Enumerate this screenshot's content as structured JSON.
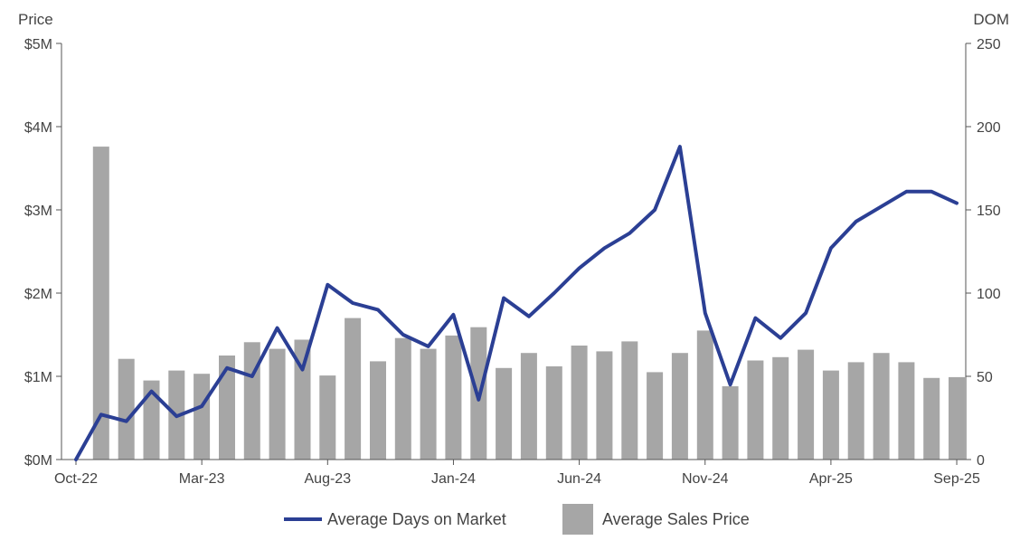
{
  "chart_data": {
    "type": "bar+line",
    "y_left_title": "Price",
    "y_right_title": "DOM",
    "y_left_ticks": [
      "$0M",
      "$1M",
      "$2M",
      "$3M",
      "$4M",
      "$5M"
    ],
    "y_left_ylim": [
      0,
      5000000
    ],
    "y_right_ticks": [
      "0",
      "50",
      "100",
      "150",
      "200",
      "250"
    ],
    "y_right_ylim": [
      0,
      250
    ],
    "x_tick_labels": [
      "Oct-22",
      "Mar-23",
      "Aug-23",
      "Jan-24",
      "Jun-24",
      "Nov-24",
      "Apr-25",
      "Sep-25"
    ],
    "categories": [
      "Oct-22",
      "Nov-22",
      "Dec-22",
      "Jan-23",
      "Feb-23",
      "Mar-23",
      "Apr-23",
      "May-23",
      "Jun-23",
      "Jul-23",
      "Aug-23",
      "Sep-23",
      "Oct-23",
      "Nov-23",
      "Dec-23",
      "Jan-24",
      "Feb-24",
      "Mar-24",
      "Apr-24",
      "May-24",
      "Jun-24",
      "Jul-24",
      "Aug-24",
      "Sep-24",
      "Oct-24",
      "Nov-24",
      "Dec-24",
      "Jan-25",
      "Feb-25",
      "Mar-25",
      "Apr-25",
      "May-25",
      "Jun-25",
      "Jul-25",
      "Aug-25",
      "Sep-25"
    ],
    "series": [
      {
        "name": "Average Sales Price",
        "kind": "bar",
        "axis": "left",
        "color": "#a6a6a6",
        "values": [
          null,
          3760000,
          1210000,
          950000,
          1070000,
          1030000,
          1250000,
          1410000,
          1330000,
          1440000,
          1010000,
          1700000,
          1180000,
          1460000,
          1330000,
          1490000,
          1590000,
          1100000,
          1280000,
          1120000,
          1370000,
          1300000,
          1420000,
          1050000,
          1280000,
          1550000,
          880000,
          1190000,
          1230000,
          1320000,
          1070000,
          1170000,
          1280000,
          1170000,
          980000,
          990000
        ]
      },
      {
        "name": "Average Days on Market",
        "kind": "line",
        "axis": "right",
        "color": "#2b3f94",
        "values": [
          0,
          27,
          23,
          41,
          26,
          32,
          55,
          50,
          79,
          54,
          105,
          94,
          90,
          75,
          68,
          87,
          36,
          97,
          86,
          100,
          115,
          127,
          136,
          150,
          188,
          88,
          45,
          85,
          73,
          88,
          127,
          143,
          152,
          161,
          161,
          154
        ]
      }
    ],
    "grid": false,
    "legend_position": "bottom-center"
  },
  "legend": {
    "line_label": "Average Days on Market",
    "bar_label": "Average Sales Price",
    "line_color": "#2b3f94",
    "bar_color": "#a6a6a6"
  }
}
